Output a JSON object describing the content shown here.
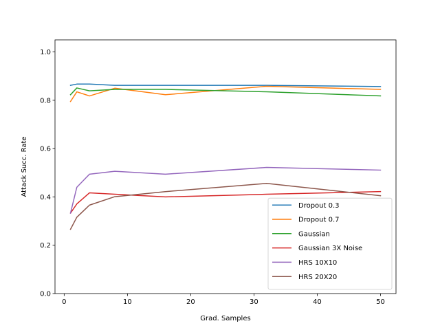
{
  "chart_data": {
    "type": "line",
    "title": "",
    "xlabel": "Grad. Samples",
    "ylabel": "Attack Succ. Rate",
    "xlim": [
      -1.45,
      52.45
    ],
    "ylim": [
      0.0,
      1.05
    ],
    "xticks": [
      0,
      10,
      20,
      30,
      40,
      50
    ],
    "yticks": [
      0.0,
      0.2,
      0.4,
      0.6,
      0.8,
      1.0
    ],
    "grid": false,
    "legend_position": "lower-right",
    "x": [
      1,
      2,
      4,
      8,
      16,
      32,
      50
    ],
    "series": [
      {
        "name": "Dropout 0.3",
        "color": "#1f77b4",
        "values": [
          0.862,
          0.867,
          0.867,
          0.862,
          0.862,
          0.862,
          0.857
        ]
      },
      {
        "name": "Dropout 0.7",
        "color": "#ff7f0e",
        "values": [
          0.795,
          0.835,
          0.818,
          0.85,
          0.823,
          0.858,
          0.845
        ]
      },
      {
        "name": "Gaussian",
        "color": "#2ca02c",
        "values": [
          0.823,
          0.851,
          0.839,
          0.845,
          0.845,
          0.835,
          0.818
        ]
      },
      {
        "name": "Gaussian 3X Noise",
        "color": "#d62728",
        "values": [
          0.333,
          0.371,
          0.417,
          0.411,
          0.4,
          0.411,
          0.422
        ]
      },
      {
        "name": "HRS 10X10",
        "color": "#9467bd",
        "values": [
          0.333,
          0.44,
          0.494,
          0.506,
          0.494,
          0.522,
          0.511
        ]
      },
      {
        "name": "HRS 20X20",
        "color": "#8c564b",
        "values": [
          0.266,
          0.316,
          0.366,
          0.401,
          0.422,
          0.456,
          0.405
        ]
      }
    ]
  }
}
